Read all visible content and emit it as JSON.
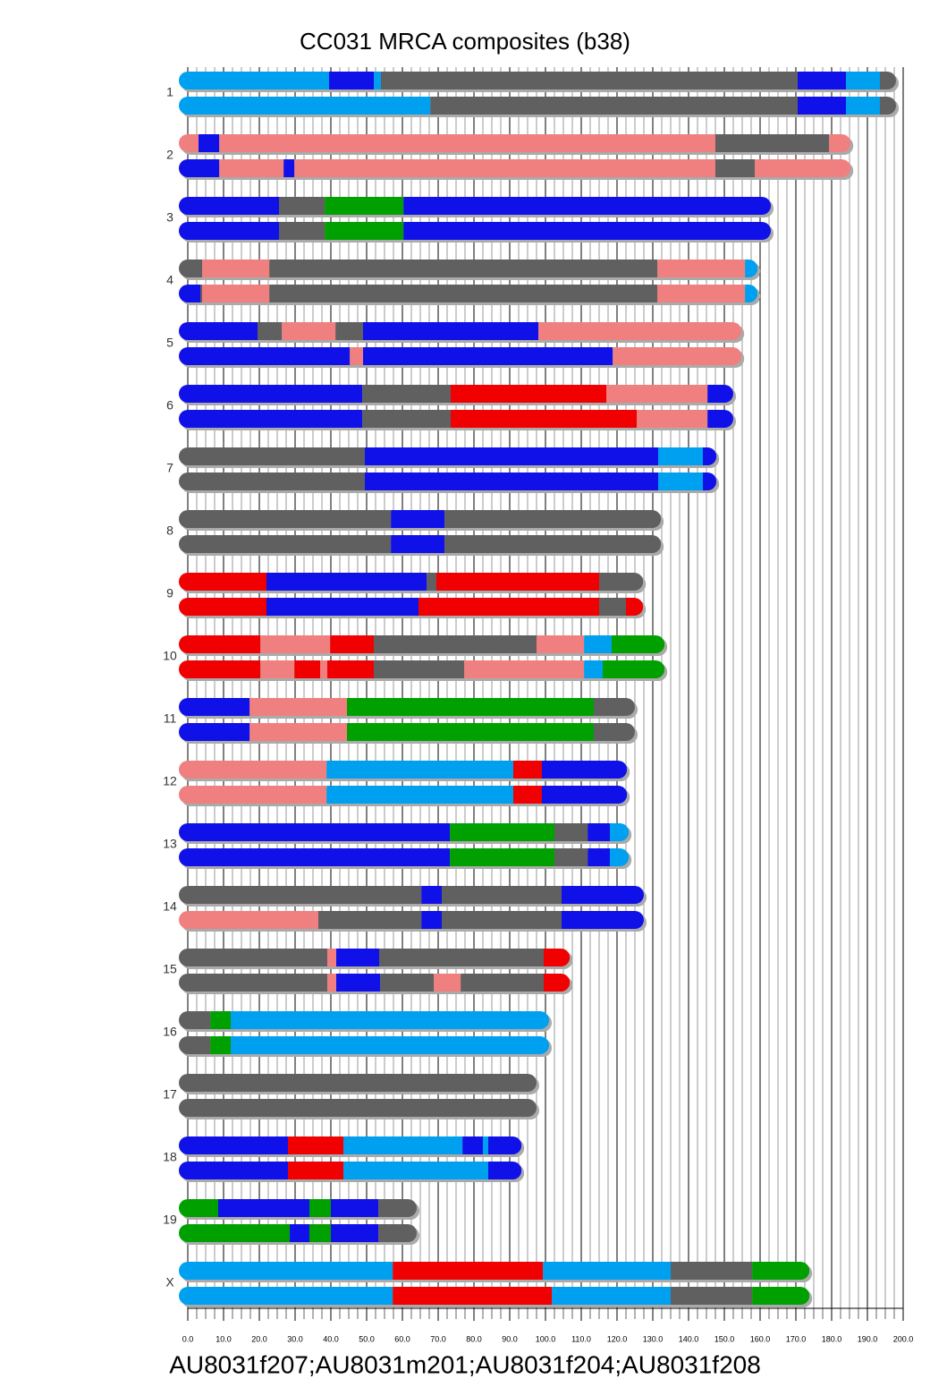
{
  "chart_data": {
    "type": "chromosome",
    "title": "CC031 MRCA composites (b38)",
    "xlabel": "AU8031f207;AU8031m201;AU8031f204;AU8031f208",
    "xlim": [
      0,
      200
    ],
    "xticks": [
      {
        "value": 0,
        "label": "0.0"
      },
      {
        "value": 10,
        "label": "10.0"
      },
      {
        "value": 20,
        "label": "20.0"
      },
      {
        "value": 30,
        "label": "30.0"
      },
      {
        "value": 40,
        "label": "40.0"
      },
      {
        "value": 50,
        "label": "50.0"
      },
      {
        "value": 60,
        "label": "60.0"
      },
      {
        "value": 70,
        "label": "70.0"
      },
      {
        "value": 80,
        "label": "80.0"
      },
      {
        "value": 90,
        "label": "90.0"
      },
      {
        "value": 100,
        "label": "100.0"
      },
      {
        "value": 110,
        "label": "110.0"
      },
      {
        "value": 120,
        "label": "120.0"
      },
      {
        "value": 130,
        "label": "130.0"
      },
      {
        "value": 140,
        "label": "140.0"
      },
      {
        "value": 150,
        "label": "150.0"
      },
      {
        "value": 160,
        "label": "160.0"
      },
      {
        "value": 170,
        "label": "170.0"
      },
      {
        "value": 180,
        "label": "180.0"
      },
      {
        "value": 190,
        "label": "190.0"
      },
      {
        "value": 200,
        "label": "200.0"
      }
    ],
    "xminorticks": [
      2.5,
      5,
      7.5,
      12.5,
      15,
      17.5,
      22.5,
      25,
      27.5,
      32.5,
      35,
      37.5,
      42.5,
      45,
      47.5,
      52.5,
      55,
      57.5,
      62.5,
      65,
      67.5,
      72.5,
      75,
      77.5,
      82.5,
      85,
      87.5,
      92.5,
      95,
      97.5,
      102.5,
      105,
      107.5,
      112.5,
      115,
      117.5,
      122.5,
      125,
      127.5,
      132.5,
      135,
      137.5,
      142.5,
      145,
      147.5,
      152.5,
      155,
      157.5,
      162.5,
      165,
      167.5,
      172.5,
      175,
      177.5,
      182.5,
      185,
      187.5,
      192.5,
      195,
      197.5
    ],
    "grid": true,
    "chromosomes": [
      {
        "name": "1",
        "haplotypes": [
          {
            "ends": [
              39.5,
              52,
              54,
              170.5,
              184,
              193.5,
              195.5
            ],
            "colors": [
              "#00a0f0",
              "#1010e8",
              "#00a0f0",
              "#606060",
              "#1010e8",
              "#00a0f0",
              "#606060"
            ]
          },
          {
            "ends": [
              67.8,
              170.5,
              184,
              193.5,
              195.5
            ],
            "colors": [
              "#00a0f0",
              "#606060",
              "#1010e8",
              "#00a0f0",
              "#606060"
            ]
          }
        ]
      },
      {
        "name": "2",
        "haplotypes": [
          {
            "ends": [
              3,
              8.8,
              147.5,
              179.3,
              182.8
            ],
            "colors": [
              "#f08080",
              "#1010e8",
              "#f08080",
              "#606060",
              "#f08080"
            ]
          },
          {
            "ends": [
              8.8,
              26.8,
              29.8,
              147.5,
              158.5,
              182.8
            ],
            "colors": [
              "#1010e8",
              "#f08080",
              "#1010e8",
              "#f08080",
              "#606060",
              "#f08080"
            ]
          }
        ]
      },
      {
        "name": "3",
        "haplotypes": [
          {
            "ends": [
              25.5,
              38.3,
              60.3,
              160.5
            ],
            "colors": [
              "#1010e8",
              "#606060",
              "#00a000",
              "#1010e8"
            ]
          },
          {
            "ends": [
              25.5,
              38.3,
              60.3,
              160.5
            ],
            "colors": [
              "#1010e8",
              "#606060",
              "#00a000",
              "#1010e8"
            ]
          }
        ]
      },
      {
        "name": "4",
        "haplotypes": [
          {
            "ends": [
              4,
              22.8,
              131.3,
              155.8,
              156.8
            ],
            "colors": [
              "#606060",
              "#f08080",
              "#606060",
              "#f08080",
              "#00a0f0"
            ]
          },
          {
            "ends": [
              3.5,
              4,
              22.8,
              131.3,
              155.8,
              156.8
            ],
            "colors": [
              "#1010e8",
              "#606060",
              "#f08080",
              "#606060",
              "#f08080",
              "#00a0f0"
            ]
          }
        ]
      },
      {
        "name": "5",
        "haplotypes": [
          {
            "ends": [
              19.5,
              26.3,
              41.3,
              49,
              98,
              152.3
            ],
            "colors": [
              "#1010e8",
              "#606060",
              "#f08080",
              "#606060",
              "#1010e8",
              "#f08080"
            ]
          },
          {
            "ends": [
              45.3,
              49,
              118.8,
              152.3
            ],
            "colors": [
              "#1010e8",
              "#f08080",
              "#1010e8",
              "#f08080"
            ]
          }
        ]
      },
      {
        "name": "6",
        "haplotypes": [
          {
            "ends": [
              48.8,
              73.5,
              117,
              145.3,
              150
            ],
            "colors": [
              "#1010e8",
              "#606060",
              "#f00000",
              "#f08080",
              "#1010e8"
            ]
          },
          {
            "ends": [
              48.8,
              73.5,
              125.5,
              145.3,
              150
            ],
            "colors": [
              "#1010e8",
              "#606060",
              "#f00000",
              "#f08080",
              "#1010e8"
            ]
          }
        ]
      },
      {
        "name": "7",
        "haplotypes": [
          {
            "ends": [
              49.5,
              131.5,
              144,
              145.3
            ],
            "colors": [
              "#606060",
              "#1010e8",
              "#00a0f0",
              "#1010e8"
            ]
          },
          {
            "ends": [
              49.5,
              131.5,
              144,
              145.3
            ],
            "colors": [
              "#606060",
              "#1010e8",
              "#00a0f0",
              "#1010e8"
            ]
          }
        ]
      },
      {
        "name": "8",
        "haplotypes": [
          {
            "ends": [
              56.8,
              71.8,
              129.8
            ],
            "colors": [
              "#606060",
              "#1010e8",
              "#606060"
            ]
          },
          {
            "ends": [
              56.8,
              71.8,
              129.8
            ],
            "colors": [
              "#606060",
              "#1010e8",
              "#606060"
            ]
          }
        ]
      },
      {
        "name": "9",
        "haplotypes": [
          {
            "ends": [
              22,
              66.8,
              69.5,
              115,
              124.8
            ],
            "colors": [
              "#f00000",
              "#1010e8",
              "#606060",
              "#f00000",
              "#606060"
            ]
          },
          {
            "ends": [
              22,
              64.5,
              115,
              122.5,
              124.8
            ],
            "colors": [
              "#f00000",
              "#1010e8",
              "#f00000",
              "#606060",
              "#f00000"
            ]
          }
        ]
      },
      {
        "name": "10",
        "haplotypes": [
          {
            "ends": [
              20.3,
              39.8,
              52,
              97.5,
              110.8,
              118.5,
              130.8
            ],
            "colors": [
              "#f00000",
              "#f08080",
              "#f00000",
              "#606060",
              "#f08080",
              "#00a0f0",
              "#00a000"
            ]
          },
          {
            "ends": [
              20.3,
              29.8,
              37,
              39,
              52,
              77.3,
              110.8,
              116,
              130.8
            ],
            "colors": [
              "#f00000",
              "#f08080",
              "#f00000",
              "#f08080",
              "#f00000",
              "#606060",
              "#f08080",
              "#00a0f0",
              "#00a000"
            ]
          }
        ]
      },
      {
        "name": "11",
        "haplotypes": [
          {
            "ends": [
              17.3,
              44.5,
              113.5,
              122.5
            ],
            "colors": [
              "#1010e8",
              "#f08080",
              "#00a000",
              "#606060"
            ]
          },
          {
            "ends": [
              17.3,
              44.5,
              113.5,
              122.5
            ],
            "colors": [
              "#1010e8",
              "#f08080",
              "#00a000",
              "#606060"
            ]
          }
        ]
      },
      {
        "name": "12",
        "haplotypes": [
          {
            "ends": [
              38.8,
              91,
              99,
              120.3
            ],
            "colors": [
              "#f08080",
              "#00a0f0",
              "#f00000",
              "#1010e8"
            ]
          },
          {
            "ends": [
              38.8,
              91,
              99,
              120.3
            ],
            "colors": [
              "#f08080",
              "#00a0f0",
              "#f00000",
              "#1010e8"
            ]
          }
        ]
      },
      {
        "name": "13",
        "haplotypes": [
          {
            "ends": [
              73.3,
              102.5,
              111.8,
              118,
              120.8
            ],
            "colors": [
              "#1010e8",
              "#00a000",
              "#606060",
              "#1010e8",
              "#00a0f0"
            ]
          },
          {
            "ends": [
              73.3,
              102.5,
              111.8,
              118,
              120.8
            ],
            "colors": [
              "#1010e8",
              "#00a000",
              "#606060",
              "#1010e8",
              "#00a0f0"
            ]
          }
        ]
      },
      {
        "name": "14",
        "haplotypes": [
          {
            "ends": [
              65.3,
              71,
              104.5,
              125
            ],
            "colors": [
              "#606060",
              "#1010e8",
              "#606060",
              "#1010e8"
            ]
          },
          {
            "ends": [
              36.5,
              65.3,
              71,
              104.5,
              125
            ],
            "colors": [
              "#f08080",
              "#606060",
              "#1010e8",
              "#606060",
              "#1010e8"
            ]
          }
        ]
      },
      {
        "name": "15",
        "haplotypes": [
          {
            "ends": [
              39,
              41.5,
              53.5,
              99.5,
              104.3
            ],
            "colors": [
              "#606060",
              "#f08080",
              "#1010e8",
              "#606060",
              "#f00000"
            ]
          },
          {
            "ends": [
              39,
              41.5,
              53.8,
              68.8,
              76.3,
              99.5,
              104.3
            ],
            "colors": [
              "#606060",
              "#f08080",
              "#1010e8",
              "#606060",
              "#f08080",
              "#606060",
              "#f00000"
            ]
          }
        ]
      },
      {
        "name": "16",
        "haplotypes": [
          {
            "ends": [
              6.3,
              12,
              98.5
            ],
            "colors": [
              "#606060",
              "#00a000",
              "#00a0f0"
            ]
          },
          {
            "ends": [
              6.3,
              12,
              98.5
            ],
            "colors": [
              "#606060",
              "#00a000",
              "#00a0f0"
            ]
          }
        ]
      },
      {
        "name": "17",
        "haplotypes": [
          {
            "ends": [
              95
            ],
            "colors": [
              "#606060"
            ]
          },
          {
            "ends": [
              95
            ],
            "colors": [
              "#606060"
            ]
          }
        ]
      },
      {
        "name": "18",
        "haplotypes": [
          {
            "ends": [
              28,
              43.5,
              76.8,
              82.5,
              84,
              90.8
            ],
            "colors": [
              "#1010e8",
              "#f00000",
              "#00a0f0",
              "#1010e8",
              "#00a0f0",
              "#1010e8"
            ]
          },
          {
            "ends": [
              28,
              43.5,
              84,
              90.8
            ],
            "colors": [
              "#1010e8",
              "#f00000",
              "#00a0f0",
              "#1010e8"
            ]
          }
        ]
      },
      {
        "name": "19",
        "haplotypes": [
          {
            "ends": [
              8.5,
              34,
              40,
              53.3,
              61.5
            ],
            "colors": [
              "#00a000",
              "#1010e8",
              "#00a000",
              "#1010e8",
              "#606060"
            ]
          },
          {
            "ends": [
              28.5,
              34,
              40,
              53.3,
              61.5
            ],
            "colors": [
              "#00a000",
              "#1010e8",
              "#00a000",
              "#1010e8",
              "#606060"
            ]
          }
        ]
      },
      {
        "name": "X",
        "haplotypes": [
          {
            "ends": [
              57.3,
              99.3,
              135,
              157.8,
              171.3
            ],
            "colors": [
              "#00a0f0",
              "#f00000",
              "#00a0f0",
              "#606060",
              "#00a000"
            ]
          },
          {
            "ends": [
              57.3,
              101.8,
              135,
              157.8,
              171.3
            ],
            "colors": [
              "#00a0f0",
              "#f00000",
              "#00a0f0",
              "#606060",
              "#00a000"
            ]
          }
        ]
      }
    ]
  }
}
